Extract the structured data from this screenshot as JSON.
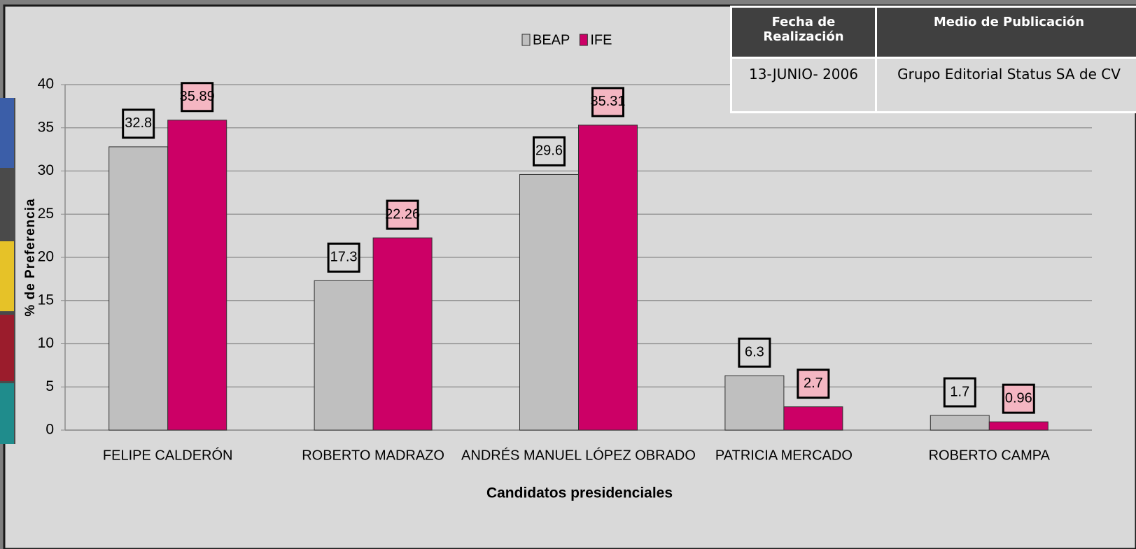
{
  "chart_data": {
    "type": "bar",
    "categories": [
      "FELIPE CALDERÓN",
      "ROBERTO MADRAZO",
      "ANDRÉS MANUEL LÓPEZ OBRADO",
      "PATRICIA MERCADO",
      "ROBERTO CAMPA"
    ],
    "series": [
      {
        "name": "BEAP",
        "color": "#bfbfbf",
        "values": [
          32.8,
          17.3,
          29.6,
          6.3,
          1.7
        ]
      },
      {
        "name": "IFE",
        "color": "#cc0066",
        "values": [
          35.89,
          22.26,
          35.31,
          2.7,
          0.96
        ]
      }
    ],
    "ylim": [
      0,
      40
    ],
    "yticks": [
      0,
      5,
      10,
      15,
      20,
      25,
      30,
      35,
      40
    ],
    "x_label": "Candidatos presidenciales",
    "y_label": "% de Preferencia",
    "grid": true,
    "legend": "top"
  },
  "table": {
    "header": [
      "Fecha de Realización",
      "Medio de Publicación"
    ],
    "rows": [
      [
        "13-JUNIO- 2006",
        "Grupo Editorial  Status SA de CV"
      ]
    ]
  }
}
